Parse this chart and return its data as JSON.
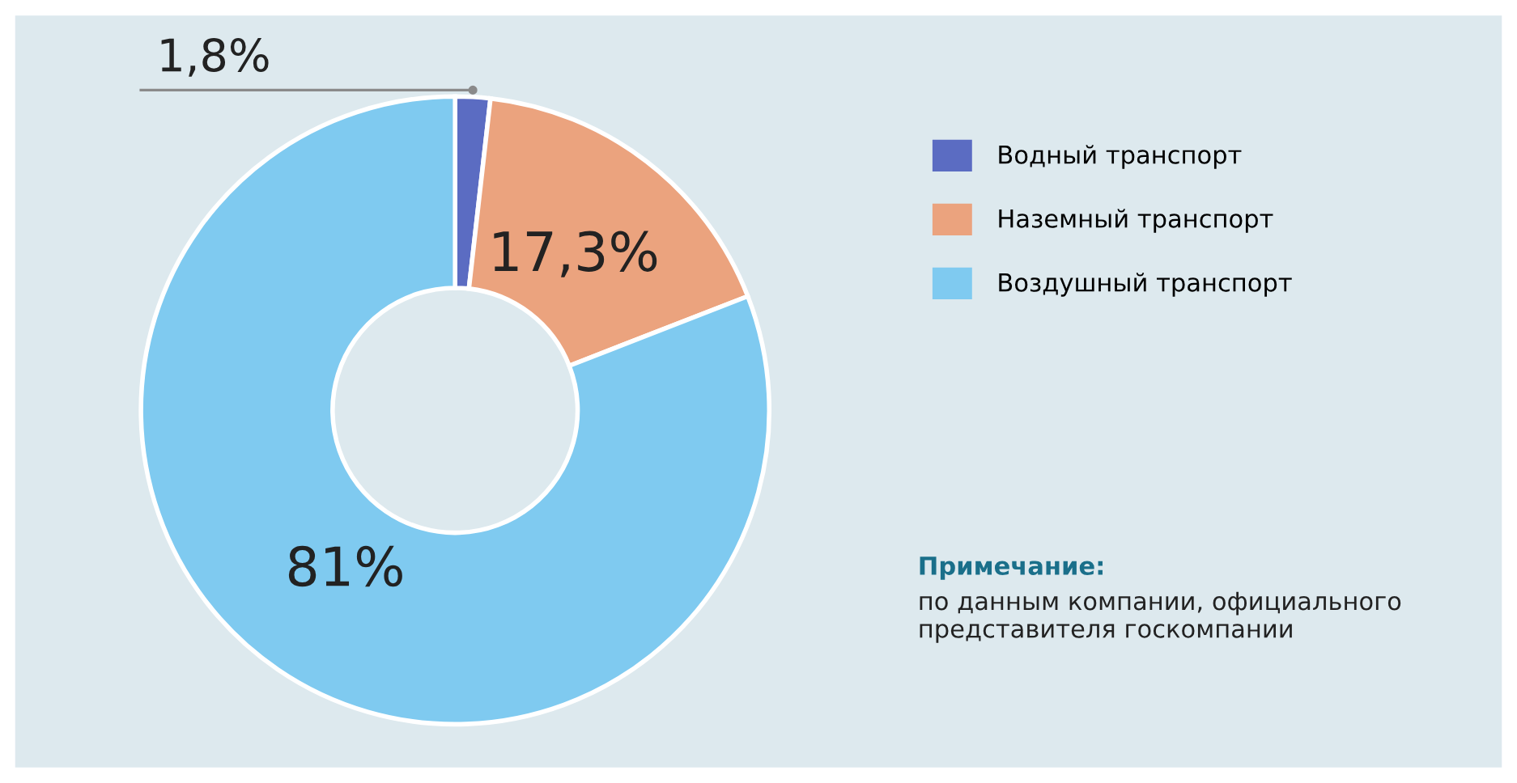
{
  "chart_data": {
    "type": "donut",
    "categories": [
      "Водный транспорт",
      "Наземный транспорт",
      "Воздушный транспорт"
    ],
    "values": [
      1.8,
      17.3,
      81
    ],
    "colors": [
      "#5b6cc2",
      "#eba37e",
      "#7fcaf0"
    ],
    "value_labels": [
      "1,8%",
      "17,3%",
      "81%"
    ],
    "legend": "right",
    "annotations": [
      "Примечание:",
      "по данным компании, официального представителя госкомпании"
    ]
  }
}
